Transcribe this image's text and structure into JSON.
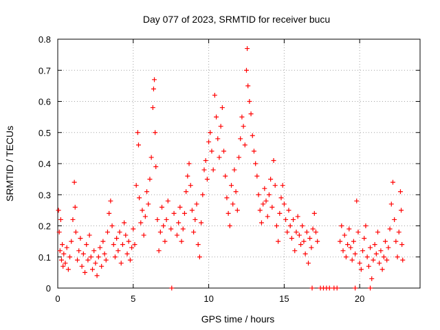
{
  "chart_data": {
    "type": "scatter",
    "title": "Day 077 of 2023, SRMTID for receiver bucu",
    "xlabel": "GPS time / hours",
    "ylabel": "SRMTID / TECUs",
    "xlim": [
      0,
      24
    ],
    "ylim": [
      0,
      0.8
    ],
    "xticks": [
      0,
      5,
      10,
      15,
      20
    ],
    "yticks": [
      0,
      0.1,
      0.2,
      0.3,
      0.4,
      0.5,
      0.6,
      0.7,
      0.8
    ],
    "xtick_labels": [
      "0",
      "5",
      "10",
      "15",
      "20"
    ],
    "ytick_labels": [
      "0",
      "0.1",
      "0.2",
      "0.3",
      "0.4",
      "0.5",
      "0.6",
      "0.7",
      "0.8"
    ],
    "grid": true,
    "marker": "plus",
    "color": "#ff0000",
    "series": [
      {
        "name": "SRMTID",
        "points": [
          [
            0.05,
            0.25
          ],
          [
            0.1,
            0.18
          ],
          [
            0.15,
            0.12
          ],
          [
            0.2,
            0.22
          ],
          [
            0.25,
            0.09
          ],
          [
            0.3,
            0.14
          ],
          [
            0.35,
            0.07
          ],
          [
            0.4,
            0.11
          ],
          [
            0.5,
            0.08
          ],
          [
            0.6,
            0.13
          ],
          [
            0.7,
            0.06
          ],
          [
            0.8,
            0.1
          ],
          [
            0.9,
            0.15
          ],
          [
            1.0,
            0.22
          ],
          [
            1.1,
            0.34
          ],
          [
            1.15,
            0.26
          ],
          [
            1.2,
            0.18
          ],
          [
            1.3,
            0.09
          ],
          [
            1.4,
            0.12
          ],
          [
            1.5,
            0.16
          ],
          [
            1.6,
            0.07
          ],
          [
            1.7,
            0.11
          ],
          [
            1.8,
            0.05
          ],
          [
            1.9,
            0.14
          ],
          [
            2.0,
            0.09
          ],
          [
            2.1,
            0.17
          ],
          [
            2.2,
            0.1
          ],
          [
            2.3,
            0.06
          ],
          [
            2.4,
            0.12
          ],
          [
            2.5,
            0.08
          ],
          [
            2.6,
            0.04
          ],
          [
            2.7,
            0.1
          ],
          [
            2.8,
            0.13
          ],
          [
            2.9,
            0.07
          ],
          [
            3.0,
            0.15
          ],
          [
            3.1,
            0.11
          ],
          [
            3.2,
            0.09
          ],
          [
            3.3,
            0.18
          ],
          [
            3.4,
            0.24
          ],
          [
            3.5,
            0.28
          ],
          [
            3.6,
            0.2
          ],
          [
            3.7,
            0.14
          ],
          [
            3.8,
            0.1
          ],
          [
            3.9,
            0.16
          ],
          [
            4.0,
            0.12
          ],
          [
            4.1,
            0.18
          ],
          [
            4.2,
            0.08
          ],
          [
            4.3,
            0.14
          ],
          [
            4.4,
            0.21
          ],
          [
            4.5,
            0.17
          ],
          [
            4.6,
            0.11
          ],
          [
            4.7,
            0.15
          ],
          [
            4.8,
            0.09
          ],
          [
            4.9,
            0.13
          ],
          [
            5.0,
            0.19
          ],
          [
            5.1,
            0.14
          ],
          [
            5.2,
            0.33
          ],
          [
            5.3,
            0.5
          ],
          [
            5.35,
            0.46
          ],
          [
            5.4,
            0.29
          ],
          [
            5.5,
            0.21
          ],
          [
            5.6,
            0.25
          ],
          [
            5.7,
            0.17
          ],
          [
            5.8,
            0.23
          ],
          [
            5.9,
            0.31
          ],
          [
            6.0,
            0.27
          ],
          [
            6.1,
            0.35
          ],
          [
            6.2,
            0.42
          ],
          [
            6.3,
            0.58
          ],
          [
            6.35,
            0.64
          ],
          [
            6.4,
            0.67
          ],
          [
            6.45,
            0.5
          ],
          [
            6.5,
            0.39
          ],
          [
            6.6,
            0.22
          ],
          [
            6.7,
            0.12
          ],
          [
            6.8,
            0.18
          ],
          [
            6.9,
            0.26
          ],
          [
            7.0,
            0.2
          ],
          [
            7.1,
            0.15
          ],
          [
            7.2,
            0.22
          ],
          [
            7.3,
            0.28
          ],
          [
            7.5,
            0.19
          ],
          [
            7.7,
            0.24
          ],
          [
            7.9,
            0.17
          ],
          [
            8.0,
            0.21
          ],
          [
            8.1,
            0.26
          ],
          [
            8.2,
            0.15
          ],
          [
            8.3,
            0.19
          ],
          [
            8.4,
            0.24
          ],
          [
            8.5,
            0.31
          ],
          [
            8.6,
            0.36
          ],
          [
            8.7,
            0.4
          ],
          [
            8.8,
            0.33
          ],
          [
            8.9,
            0.25
          ],
          [
            9.0,
            0.18
          ],
          [
            9.1,
            0.22
          ],
          [
            9.2,
            0.27
          ],
          [
            9.3,
            0.14
          ],
          [
            9.4,
            0.1
          ],
          [
            9.5,
            0.21
          ],
          [
            9.6,
            0.3
          ],
          [
            9.7,
            0.38
          ],
          [
            9.8,
            0.41
          ],
          [
            9.9,
            0.35
          ],
          [
            10.0,
            0.47
          ],
          [
            10.1,
            0.5
          ],
          [
            10.2,
            0.44
          ],
          [
            10.3,
            0.38
          ],
          [
            10.4,
            0.62
          ],
          [
            10.5,
            0.55
          ],
          [
            10.6,
            0.48
          ],
          [
            10.7,
            0.42
          ],
          [
            10.8,
            0.52
          ],
          [
            10.9,
            0.58
          ],
          [
            11.0,
            0.44
          ],
          [
            11.1,
            0.36
          ],
          [
            11.2,
            0.29
          ],
          [
            11.3,
            0.24
          ],
          [
            11.4,
            0.2
          ],
          [
            11.5,
            0.33
          ],
          [
            11.6,
            0.27
          ],
          [
            11.7,
            0.38
          ],
          [
            11.8,
            0.31
          ],
          [
            11.9,
            0.25
          ],
          [
            12.0,
            0.42
          ],
          [
            12.1,
            0.48
          ],
          [
            12.2,
            0.55
          ],
          [
            12.3,
            0.52
          ],
          [
            12.4,
            0.46
          ],
          [
            12.5,
            0.7
          ],
          [
            12.55,
            0.77
          ],
          [
            12.6,
            0.65
          ],
          [
            12.7,
            0.6
          ],
          [
            12.8,
            0.56
          ],
          [
            12.9,
            0.49
          ],
          [
            13.0,
            0.44
          ],
          [
            13.1,
            0.4
          ],
          [
            13.2,
            0.36
          ],
          [
            13.3,
            0.3
          ],
          [
            13.4,
            0.25
          ],
          [
            13.5,
            0.21
          ],
          [
            13.6,
            0.27
          ],
          [
            13.7,
            0.32
          ],
          [
            13.8,
            0.28
          ],
          [
            13.9,
            0.23
          ],
          [
            14.0,
            0.3
          ],
          [
            14.1,
            0.35
          ],
          [
            14.2,
            0.26
          ],
          [
            14.3,
            0.41
          ],
          [
            14.4,
            0.33
          ],
          [
            14.5,
            0.2
          ],
          [
            14.6,
            0.15
          ],
          [
            14.7,
            0.24
          ],
          [
            14.8,
            0.29
          ],
          [
            14.9,
            0.33
          ],
          [
            15.0,
            0.27
          ],
          [
            15.1,
            0.22
          ],
          [
            15.2,
            0.18
          ],
          [
            15.3,
            0.25
          ],
          [
            15.4,
            0.2
          ],
          [
            15.5,
            0.16
          ],
          [
            15.6,
            0.22
          ],
          [
            15.7,
            0.12
          ],
          [
            15.8,
            0.18
          ],
          [
            15.9,
            0.23
          ],
          [
            16.0,
            0.17
          ],
          [
            16.1,
            0.14
          ],
          [
            16.2,
            0.2
          ],
          [
            16.3,
            0.15
          ],
          [
            16.4,
            0.11
          ],
          [
            16.5,
            0.18
          ],
          [
            16.6,
            0.08
          ],
          [
            16.7,
            0.16
          ],
          [
            16.8,
            0.13
          ],
          [
            16.9,
            0.19
          ],
          [
            17.0,
            0.24
          ],
          [
            17.1,
            0.18
          ],
          [
            17.2,
            0.15
          ],
          [
            7.55,
            0.0
          ],
          [
            16.85,
            0.0
          ],
          [
            17.4,
            0.0
          ],
          [
            17.6,
            0.0
          ],
          [
            17.8,
            0.0
          ],
          [
            18.0,
            0.0
          ],
          [
            18.3,
            0.0
          ],
          [
            18.5,
            0.0
          ],
          [
            19.7,
            0.0
          ],
          [
            20.7,
            0.0
          ],
          [
            18.7,
            0.15
          ],
          [
            18.8,
            0.2
          ],
          [
            18.9,
            0.12
          ],
          [
            19.0,
            0.17
          ],
          [
            19.1,
            0.1
          ],
          [
            19.2,
            0.14
          ],
          [
            19.3,
            0.19
          ],
          [
            19.4,
            0.13
          ],
          [
            19.5,
            0.09
          ],
          [
            19.6,
            0.15
          ],
          [
            19.7,
            0.11
          ],
          [
            19.8,
            0.28
          ],
          [
            19.9,
            0.18
          ],
          [
            20.0,
            0.08
          ],
          [
            20.1,
            0.06
          ],
          [
            20.2,
            0.12
          ],
          [
            20.3,
            0.16
          ],
          [
            20.4,
            0.2
          ],
          [
            20.5,
            0.1
          ],
          [
            20.6,
            0.07
          ],
          [
            20.7,
            0.13
          ],
          [
            20.8,
            0.03
          ],
          [
            20.9,
            0.09
          ],
          [
            21.0,
            0.14
          ],
          [
            21.1,
            0.11
          ],
          [
            21.2,
            0.18
          ],
          [
            21.3,
            0.08
          ],
          [
            21.4,
            0.12
          ],
          [
            21.5,
            0.06
          ],
          [
            21.6,
            0.1
          ],
          [
            21.7,
            0.15
          ],
          [
            21.8,
            0.09
          ],
          [
            21.9,
            0.13
          ],
          [
            22.0,
            0.19
          ],
          [
            22.1,
            0.27
          ],
          [
            22.2,
            0.34
          ],
          [
            22.3,
            0.22
          ],
          [
            22.4,
            0.15
          ],
          [
            22.5,
            0.1
          ],
          [
            22.6,
            0.18
          ],
          [
            22.7,
            0.31
          ],
          [
            22.75,
            0.25
          ],
          [
            22.8,
            0.14
          ],
          [
            22.85,
            0.09
          ]
        ]
      }
    ]
  }
}
